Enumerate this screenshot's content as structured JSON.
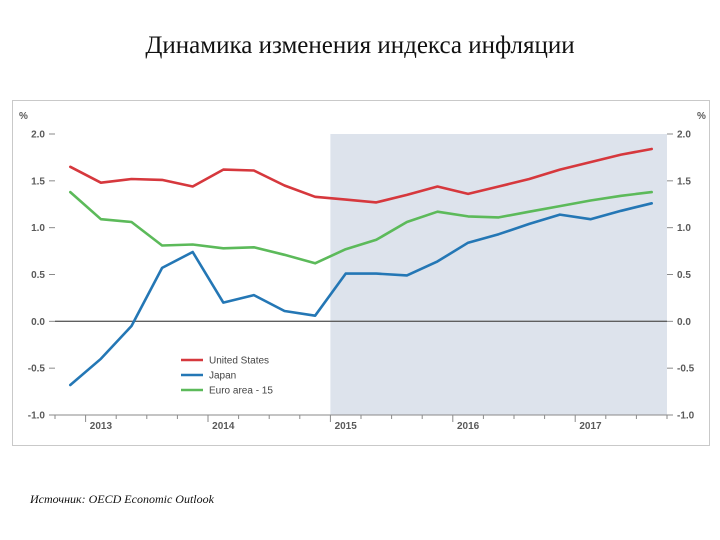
{
  "title": "Динамика изменения индекса инфляции",
  "source": "Источник: OECD Economic Outlook",
  "chart_data": {
    "type": "line",
    "unit_left": "%",
    "unit_right": "%",
    "ylim": [
      -1.0,
      2.0
    ],
    "yticks": [
      "2.0",
      "1.5",
      "1.0",
      "0.5",
      "0.0",
      "-0.5",
      "-1.0"
    ],
    "ytick_values": [
      2.0,
      1.5,
      1.0,
      0.5,
      0.0,
      -0.5,
      -1.0
    ],
    "x_labels": [
      "2013",
      "2014",
      "2015",
      "2016",
      "2017"
    ],
    "x_label_positions": [
      1,
      5,
      9,
      13,
      17
    ],
    "xlim": [
      -0.5,
      19.5
    ],
    "projection_start": 9,
    "projection_color": "#dde3ec",
    "grid": false,
    "legend_placement": "bottom-center",
    "x": [
      0,
      1,
      2,
      3,
      4,
      5,
      6,
      7,
      8,
      9,
      10,
      11,
      12,
      13,
      14,
      15,
      16,
      17,
      18,
      19
    ],
    "series": [
      {
        "name": "United States",
        "color": "#d6383d",
        "values": [
          1.65,
          1.48,
          1.52,
          1.51,
          1.44,
          1.62,
          1.61,
          1.45,
          1.33,
          1.3,
          1.27,
          1.35,
          1.44,
          1.36,
          1.44,
          1.52,
          1.62,
          1.7,
          1.78,
          1.84
        ]
      },
      {
        "name": "Japan",
        "color": "#2477b5",
        "values": [
          -0.68,
          -0.4,
          -0.05,
          0.57,
          0.74,
          0.2,
          0.28,
          0.11,
          0.06,
          0.51,
          0.51,
          0.49,
          0.64,
          0.84,
          0.93,
          1.04,
          1.14,
          1.09,
          1.18,
          1.26
        ]
      },
      {
        "name": "Euro area - 15",
        "color": "#5cba5a",
        "values": [
          1.38,
          1.09,
          1.06,
          0.81,
          0.82,
          0.78,
          0.79,
          0.71,
          0.62,
          0.77,
          0.87,
          1.06,
          1.17,
          1.12,
          1.11,
          1.17,
          1.23,
          1.29,
          1.34,
          1.38
        ]
      }
    ]
  }
}
